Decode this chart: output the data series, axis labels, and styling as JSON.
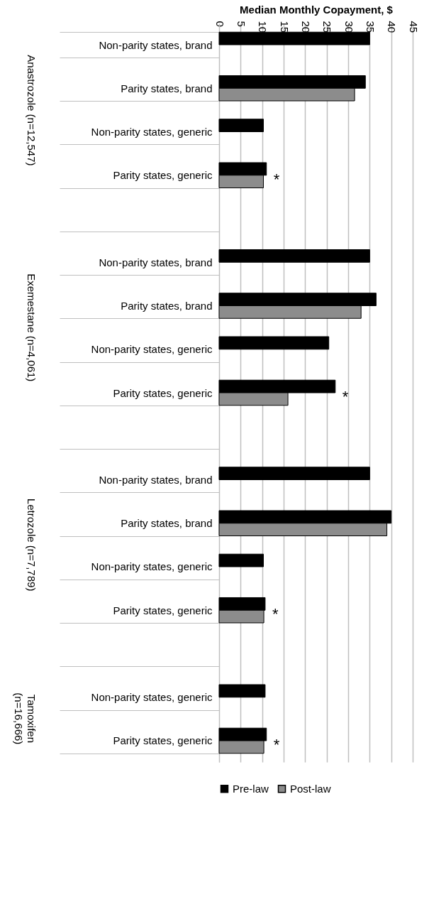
{
  "chart_data": {
    "type": "bar",
    "orientation": "horizontal",
    "xlabel": "Median Monthly Copayment, $",
    "categories": [
      "Non-parity states, brand",
      "Parity states, brand",
      "Non-parity states, generic",
      "Parity states, generic",
      null,
      "Non-parity states, brand",
      "Parity states, brand",
      "Non-parity states, generic",
      "Parity states, generic",
      null,
      "Non-parity states, brand",
      "Parity states, brand",
      "Non-parity states, generic",
      "Parity states, generic",
      null,
      "Non-parity states, generic",
      "Parity states, generic"
    ],
    "series": [
      {
        "name": "Pre-law",
        "color": "#000000",
        "values": [
          35,
          34,
          10.3,
          11,
          null,
          35,
          36.5,
          25.5,
          27,
          null,
          35,
          40,
          10.3,
          10.7,
          null,
          10.7,
          11
        ]
      },
      {
        "name": "Post-law",
        "color": "#8c8c8c",
        "values": [
          null,
          31.5,
          null,
          10.3,
          null,
          null,
          33,
          null,
          16,
          null,
          null,
          39,
          null,
          10.4,
          null,
          null,
          10.4
        ]
      }
    ],
    "xlim": [
      0,
      45
    ],
    "xticks": [
      0,
      5,
      10,
      15,
      20,
      25,
      30,
      35,
      40,
      45
    ],
    "grid": "x",
    "legend": "bottom",
    "annotations": [
      "Anastrozole (n=12,547)",
      "Exemestane (n=4,061)",
      "Letrozole (n=7,789)",
      "Tamoxifen (n=16,666)",
      "*",
      "*",
      "*",
      "*"
    ]
  }
}
